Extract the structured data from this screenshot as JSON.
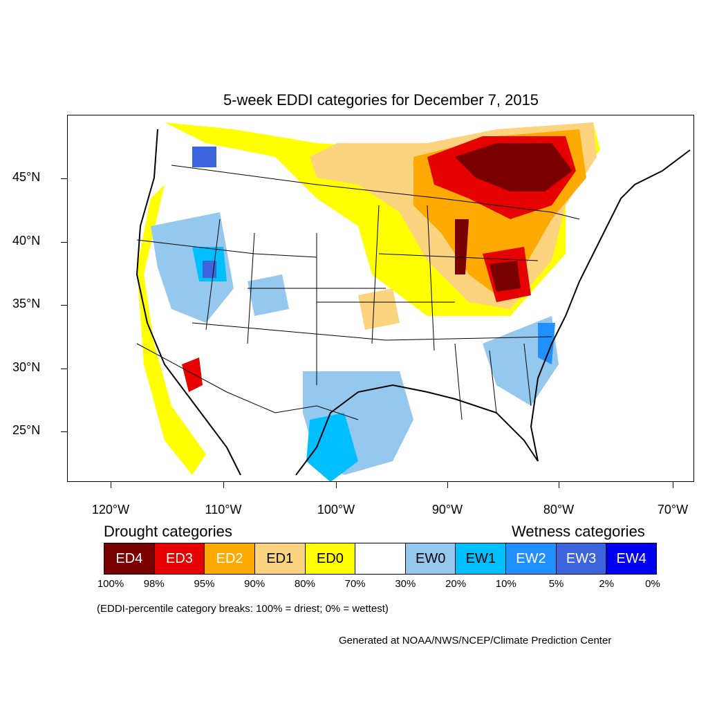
{
  "title": "5-week EDDI categories for December 7, 2015",
  "lat_labels": [
    "45°N",
    "40°N",
    "35°N",
    "30°N",
    "25°N"
  ],
  "lon_labels": [
    "120°W",
    "110°W",
    "100°W",
    "90°W",
    "80°W",
    "70°W"
  ],
  "legend": {
    "drought_heading": "Drought categories",
    "wetness_heading": "Wetness categories",
    "categories": [
      {
        "label": "ED4",
        "color": "#7a0000",
        "text_color": "#ffffff"
      },
      {
        "label": "ED3",
        "color": "#e60000",
        "text_color": "#ffffff"
      },
      {
        "label": "ED2",
        "color": "#ffaa00",
        "text_color": "#ffffff"
      },
      {
        "label": "ED1",
        "color": "#fcd37f",
        "text_color": "#000000"
      },
      {
        "label": "ED0",
        "color": "#ffff00",
        "text_color": "#000000"
      },
      {
        "label": "",
        "color": "#ffffff",
        "text_color": "#000000"
      },
      {
        "label": "EW0",
        "color": "#95c8ee",
        "text_color": "#000000"
      },
      {
        "label": "EW1",
        "color": "#00bfff",
        "text_color": "#000000"
      },
      {
        "label": "EW2",
        "color": "#2090ff",
        "text_color": "#ffffff"
      },
      {
        "label": "EW3",
        "color": "#3c64dc",
        "text_color": "#ffffff"
      },
      {
        "label": "EW4",
        "color": "#0000f0",
        "text_color": "#ffffff"
      }
    ],
    "percent_breaks": [
      "100%",
      "98%",
      "95%",
      "90%",
      "80%",
      "70%",
      "30%",
      "20%",
      "10%",
      "5%",
      "2%",
      "0%"
    ]
  },
  "note": "(EDDI-percentile category breaks: 100% = driest; 0% = wettest)",
  "credit": "Generated at NOAA/NWS/NCEP/Climate Prediction Center"
}
